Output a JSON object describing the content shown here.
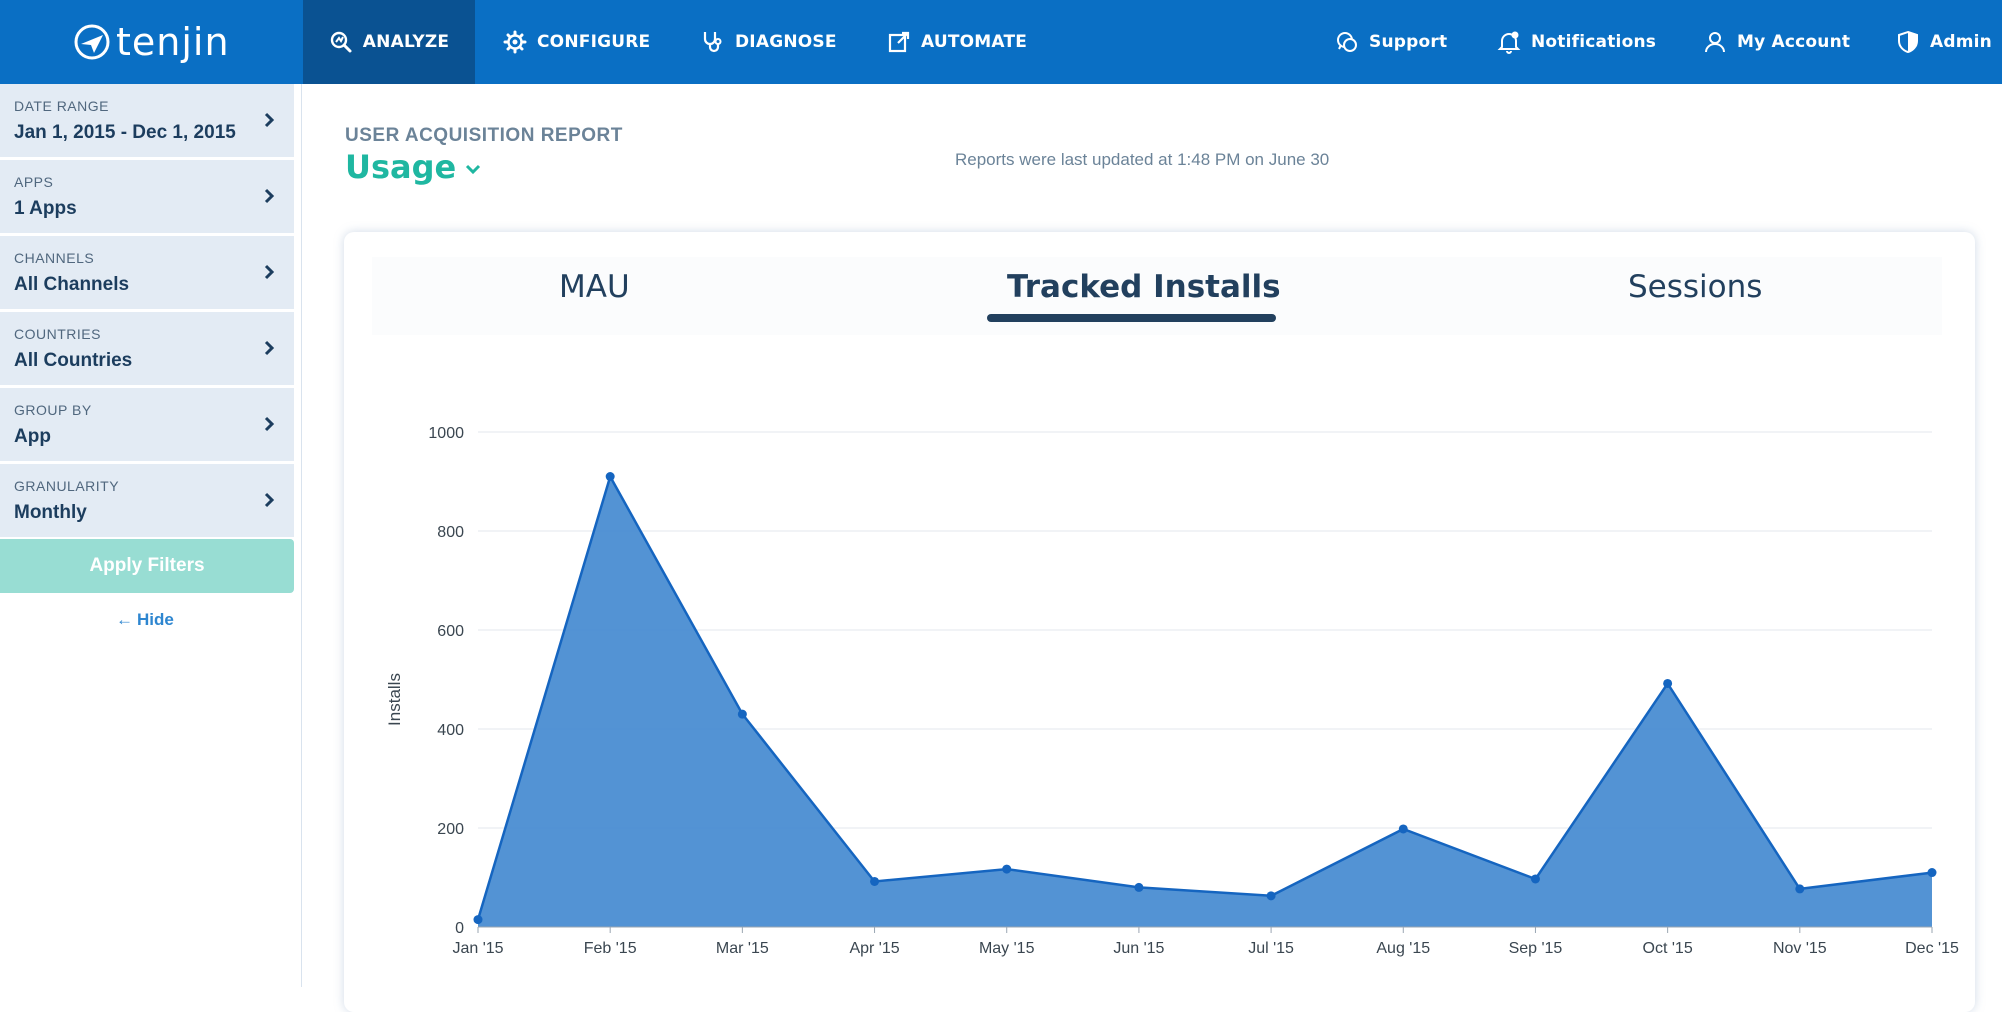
{
  "nav": {
    "logo_text": "tenjin",
    "left": [
      {
        "label": "ANALYZE",
        "icon": "analyze-icon",
        "active": true
      },
      {
        "label": "CONFIGURE",
        "icon": "gear-icon",
        "active": false
      },
      {
        "label": "DIAGNOSE",
        "icon": "stethoscope-icon",
        "active": false
      },
      {
        "label": "AUTOMATE",
        "icon": "external-link-icon",
        "active": false
      }
    ],
    "right": [
      {
        "label": "Support",
        "icon": "chat-icon"
      },
      {
        "label": "Notifications",
        "icon": "bell-icon"
      },
      {
        "label": "My Account",
        "icon": "user-icon"
      },
      {
        "label": "Admin",
        "icon": "shield-icon"
      }
    ]
  },
  "sidebar": {
    "filters": [
      {
        "label": "DATE RANGE",
        "value": "Jan 1, 2015 - Dec 1, 2015"
      },
      {
        "label": "APPS",
        "value": "1 Apps"
      },
      {
        "label": "CHANNELS",
        "value": "All Channels"
      },
      {
        "label": "COUNTRIES",
        "value": "All Countries"
      },
      {
        "label": "GROUP BY",
        "value": "App"
      },
      {
        "label": "GRANULARITY",
        "value": "Monthly"
      }
    ],
    "apply_label": "Apply Filters",
    "hide_label": "Hide"
  },
  "report": {
    "label": "USER ACQUISITION REPORT",
    "title": "Usage",
    "updated": "Reports were last updated at 1:48 PM on June 30"
  },
  "tabs": [
    {
      "label": "MAU",
      "active": false
    },
    {
      "label": "Tracked Installs",
      "active": true
    },
    {
      "label": "Sessions",
      "active": false
    }
  ],
  "colors": {
    "brand": "#0a6fc4",
    "accent": "#1fb7a1",
    "series": "#1565c0",
    "area": "#4a8dd2"
  },
  "chart_data": {
    "type": "area",
    "title": "",
    "xlabel": "",
    "ylabel": "Installs",
    "categories": [
      "Jan '15",
      "Feb '15",
      "Mar '15",
      "Apr '15",
      "May '15",
      "Jun '15",
      "Jul '15",
      "Aug '15",
      "Sep '15",
      "Oct '15",
      "Nov '15",
      "Dec '15"
    ],
    "series": [
      {
        "values": [
          15,
          910,
          430,
          92,
          117,
          80,
          63,
          198,
          97,
          492,
          77,
          110
        ]
      }
    ],
    "ylim": [
      0,
      1000
    ],
    "yticks": [
      0,
      200,
      400,
      600,
      800,
      1000
    ],
    "grid": true
  }
}
